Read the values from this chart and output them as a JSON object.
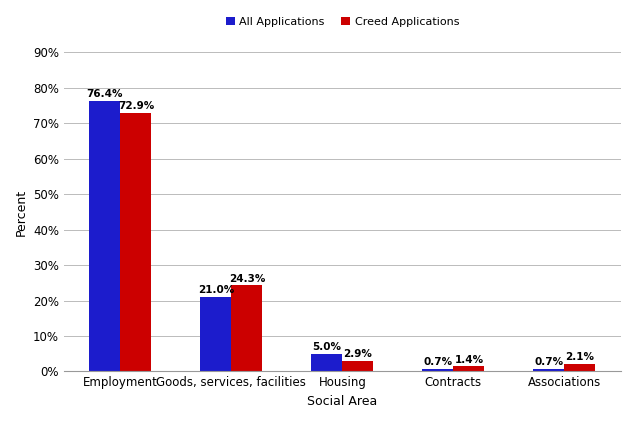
{
  "categories": [
    "Employment",
    "Goods, services, facilities",
    "Housing",
    "Contracts",
    "Associations"
  ],
  "all_applications": [
    76.4,
    21.0,
    5.0,
    0.7,
    0.7
  ],
  "creed_applications": [
    72.9,
    24.3,
    2.9,
    1.4,
    2.1
  ],
  "all_color": "#1C1CCC",
  "creed_color": "#CC0000",
  "bar_width": 0.28,
  "ylim": [
    0,
    90
  ],
  "yticks": [
    0,
    10,
    20,
    30,
    40,
    50,
    60,
    70,
    80,
    90
  ],
  "xlabel": "Social Area",
  "ylabel": "Percent",
  "legend_labels": [
    "All Applications",
    "Creed Applications"
  ],
  "background_color": "#ffffff",
  "grid_color": "#bbbbbb",
  "label_fontsize": 7.5,
  "axis_label_fontsize": 9,
  "tick_fontsize": 8.5
}
